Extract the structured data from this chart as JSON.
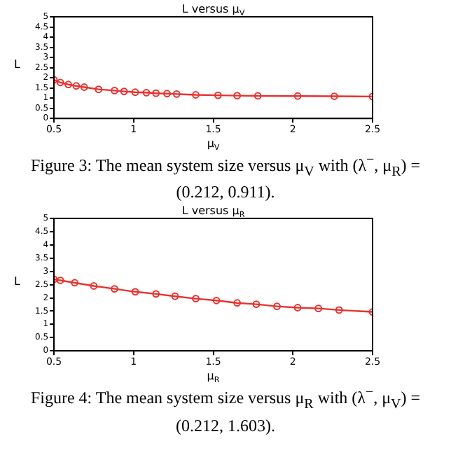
{
  "chart_data": [
    {
      "type": "line",
      "title": "L versus μ$_{V}$",
      "xlabel": "μ$_{V}$",
      "ylabel": "L",
      "annotations": [
        "Figure 3: The mean system size versus μ$_{V}$ with (λ$^{−}$, μ$_{R}$) = (0.212, 0.911)."
      ],
      "x": [
        0.5,
        0.54,
        0.59,
        0.64,
        0.69,
        0.78,
        0.88,
        0.94,
        1.01,
        1.08,
        1.14,
        1.21,
        1.27,
        1.39,
        1.53,
        1.65,
        1.78,
        2.03,
        2.26,
        2.5
      ],
      "series": [
        {
          "color": "#e8322f",
          "values": [
            1.9,
            1.77,
            1.67,
            1.6,
            1.54,
            1.43,
            1.37,
            1.33,
            1.29,
            1.27,
            1.24,
            1.22,
            1.2,
            1.16,
            1.14,
            1.12,
            1.11,
            1.1,
            1.09,
            1.08
          ]
        }
      ],
      "xlim": [
        0.5,
        2.5
      ],
      "ylim": [
        0,
        5
      ],
      "xticks": [
        0.5,
        1,
        1.5,
        2,
        2.5
      ],
      "yticks": [
        0,
        0.5,
        1,
        1.5,
        2,
        2.5,
        3,
        3.5,
        4,
        4.5,
        5
      ],
      "marker": "circle"
    },
    {
      "type": "line",
      "title": "L versus μ$_{R}$",
      "xlabel": "μ$_{R}$",
      "ylabel": "L",
      "annotations": [
        "Figure 4: The mean system size versus μ$_{R}$ with (λ$^{−}$, μ$_{V}$) = (0.212, 1.603)."
      ],
      "x": [
        0.5,
        0.54,
        0.63,
        0.75,
        0.88,
        1.01,
        1.14,
        1.26,
        1.39,
        1.52,
        1.65,
        1.77,
        1.9,
        2.03,
        2.16,
        2.29,
        2.5
      ],
      "series": [
        {
          "color": "#e8322f",
          "values": [
            2.7,
            2.66,
            2.57,
            2.45,
            2.34,
            2.23,
            2.15,
            2.06,
            1.97,
            1.9,
            1.81,
            1.76,
            1.68,
            1.63,
            1.6,
            1.54,
            1.47
          ]
        }
      ],
      "xlim": [
        0.5,
        2.5
      ],
      "ylim": [
        0,
        5
      ],
      "xticks": [
        0.5,
        1,
        1.5,
        2,
        2.5
      ],
      "yticks": [
        0,
        0.5,
        1,
        1.5,
        2,
        2.5,
        3,
        3.5,
        4,
        4.5,
        5
      ],
      "marker": "circle"
    }
  ]
}
